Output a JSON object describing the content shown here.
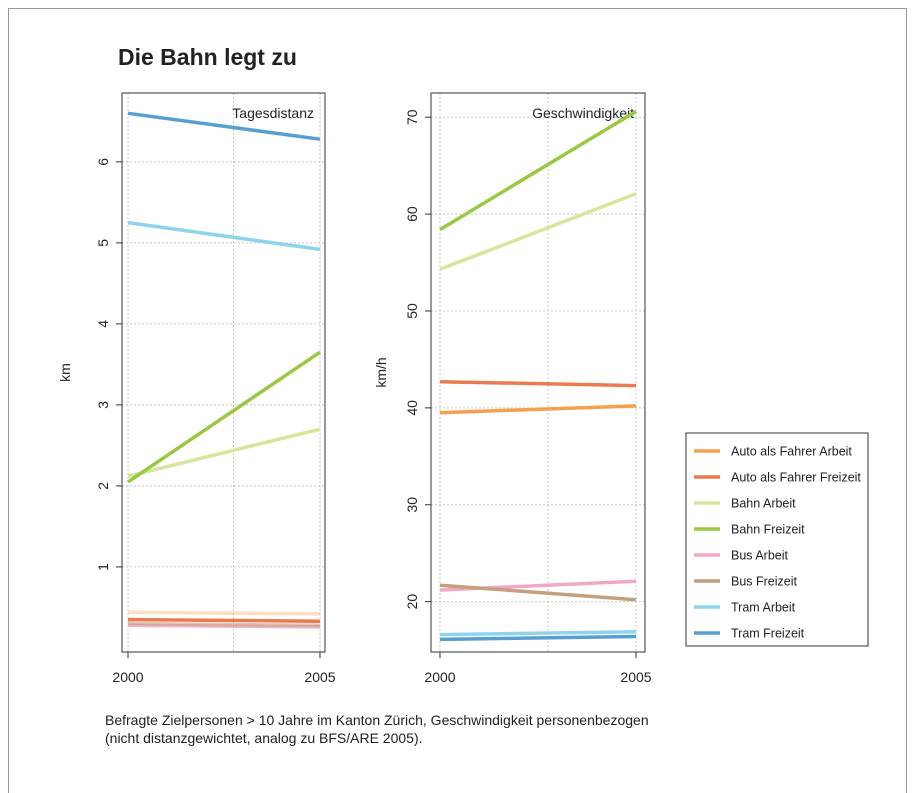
{
  "title": "Die Bahn legt zu",
  "caption": {
    "line1": "Befragte Zielpersonen > 10 Jahre im Kanton Zürich, Geschwindigkeit personenbezogen",
    "line2": "(nicht distanzgewichtet, analog zu BFS/ARE 2005)."
  },
  "colors": {
    "auto_arbeit": "#f5a04c",
    "auto_freizeit": "#ea7b4f",
    "bahn_arbeit": "#d6e69a",
    "bahn_freizeit": "#99c940",
    "bus_arbeit": "#f2a9c8",
    "bus_freizeit": "#c4a07c",
    "tram_arbeit": "#8fd4ef",
    "tram_freizeit": "#569fd3"
  },
  "legend": {
    "entries": [
      {
        "label": "Auto als Fahrer Arbeit",
        "color": "#f5a04c"
      },
      {
        "label": "Auto als Fahrer Freizeit",
        "color": "#ea7b4f"
      },
      {
        "label": "Bahn Arbeit",
        "color": "#d6e69a"
      },
      {
        "label": "Bahn Freizeit",
        "color": "#99c940"
      },
      {
        "label": "Bus Arbeit",
        "color": "#f2a9c8"
      },
      {
        "label": "Bus Freizeit",
        "color": "#c4a07c"
      },
      {
        "label": "Tram Arbeit",
        "color": "#8fd4ef"
      },
      {
        "label": "Tram Freizeit",
        "color": "#569fd3"
      }
    ],
    "placement": "right"
  },
  "chart_data": [
    {
      "type": "line",
      "title": "Tagesdistanz",
      "xlabel": "",
      "ylabel": "km",
      "x": [
        2000,
        2005
      ],
      "xticks": [
        "2000",
        "2005"
      ],
      "yticks": [
        1,
        2,
        3,
        4,
        5,
        6
      ],
      "ylim": [
        -0.05,
        6.85
      ],
      "grid": true,
      "series": [
        {
          "name": "Auto als Fahrer Arbeit",
          "values": [
            0.44,
            0.42
          ],
          "color": "#f5a04c",
          "alpha": 0.35
        },
        {
          "name": "Auto als Fahrer Freizeit",
          "values": [
            0.35,
            0.33
          ],
          "color": "#ea7b4f",
          "alpha": 1
        },
        {
          "name": "Bus Arbeit",
          "values": [
            0.28,
            0.26
          ],
          "color": "#f2a9c8",
          "alpha": 0.9
        },
        {
          "name": "Bus Freizeit",
          "values": [
            0.3,
            0.28
          ],
          "color": "#c4a07c",
          "alpha": 0.6
        },
        {
          "name": "Bahn Arbeit",
          "values": [
            2.12,
            2.7
          ],
          "color": "#d6e69a",
          "alpha": 1
        },
        {
          "name": "Bahn Freizeit",
          "values": [
            2.05,
            3.65
          ],
          "color": "#99c940",
          "alpha": 1
        },
        {
          "name": "Tram Arbeit",
          "values": [
            5.25,
            4.92
          ],
          "color": "#8fd4ef",
          "alpha": 1
        },
        {
          "name": "Tram Freizeit",
          "values": [
            6.6,
            6.28
          ],
          "color": "#569fd3",
          "alpha": 1
        }
      ]
    },
    {
      "type": "line",
      "title": "Geschwindigkeit",
      "xlabel": "",
      "ylabel": "km/h",
      "x": [
        2000,
        2005
      ],
      "xticks": [
        "2000",
        "2005"
      ],
      "yticks": [
        20,
        30,
        40,
        50,
        60,
        70
      ],
      "ylim": [
        14.8,
        72.5
      ],
      "grid": true,
      "series": [
        {
          "name": "Auto als Fahrer Arbeit",
          "values": [
            39.5,
            40.2
          ],
          "color": "#f5a04c",
          "alpha": 1
        },
        {
          "name": "Auto als Fahrer Freizeit",
          "values": [
            42.7,
            42.3
          ],
          "color": "#ea7b4f",
          "alpha": 1
        },
        {
          "name": "Bahn Arbeit",
          "values": [
            54.3,
            62.1
          ],
          "color": "#d6e69a",
          "alpha": 1
        },
        {
          "name": "Bahn Freizeit",
          "values": [
            58.4,
            70.6
          ],
          "color": "#99c940",
          "alpha": 1
        },
        {
          "name": "Bus Arbeit",
          "values": [
            21.2,
            22.1
          ],
          "color": "#f2a9c8",
          "alpha": 1
        },
        {
          "name": "Bus Freizeit",
          "values": [
            21.7,
            20.2
          ],
          "color": "#c4a07c",
          "alpha": 1
        },
        {
          "name": "Tram Arbeit",
          "values": [
            16.6,
            16.9
          ],
          "color": "#8fd4ef",
          "alpha": 1
        },
        {
          "name": "Tram Freizeit",
          "values": [
            16.1,
            16.4
          ],
          "color": "#569fd3",
          "alpha": 1
        }
      ]
    }
  ]
}
